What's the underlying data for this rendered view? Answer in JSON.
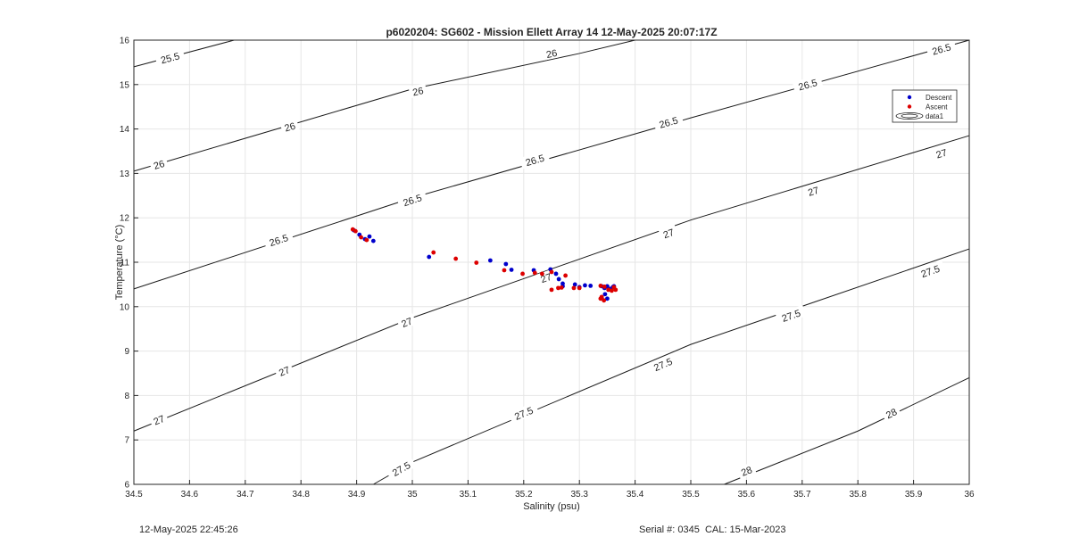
{
  "chart_data": {
    "type": "scatter",
    "title": "p6020204: SG602 - Mission Ellett Array 14 12-May-2025 20:07:17Z",
    "xlabel": "Salinity (psu)",
    "ylabel": "Temperature (°C)",
    "xlim": [
      34.5,
      36
    ],
    "ylim": [
      6,
      16
    ],
    "xticks": [
      "34.5",
      "34.6",
      "34.7",
      "34.8",
      "34.9",
      "35",
      "35.1",
      "35.2",
      "35.3",
      "35.4",
      "35.5",
      "35.6",
      "35.7",
      "35.8",
      "35.9",
      "36"
    ],
    "yticks": [
      "6",
      "7",
      "8",
      "9",
      "10",
      "11",
      "12",
      "13",
      "14",
      "15",
      "16"
    ],
    "grid": true,
    "legend_position": "top-right",
    "legend": [
      {
        "label": "Descent",
        "color": "#0000cc"
      },
      {
        "label": "Ascent",
        "color": "#dd0000"
      },
      {
        "label": "data1",
        "color": "#000000"
      }
    ],
    "contours": [
      {
        "label": "25.5",
        "points": [
          [
            34.5,
            15.4
          ],
          [
            34.68,
            16.0
          ]
        ],
        "labels_at": [
          [
            34.565,
            15.6
          ]
        ]
      },
      {
        "label": "26",
        "points": [
          [
            34.5,
            13.05
          ],
          [
            35.0,
            14.9
          ],
          [
            35.3,
            15.7
          ],
          [
            35.4,
            16.0
          ]
        ],
        "labels_at": [
          [
            34.545,
            13.2
          ],
          [
            34.78,
            14.05
          ],
          [
            35.01,
            14.85
          ],
          [
            35.25,
            15.7
          ]
        ]
      },
      {
        "label": "26.5",
        "points": [
          [
            34.5,
            10.4
          ],
          [
            35.0,
            12.45
          ],
          [
            35.5,
            14.25
          ],
          [
            36.0,
            16.0
          ]
        ],
        "labels_at": [
          [
            34.76,
            11.5
          ],
          [
            35.0,
            12.4
          ],
          [
            35.22,
            13.3
          ],
          [
            35.46,
            14.15
          ],
          [
            35.71,
            15.0
          ],
          [
            35.95,
            15.8
          ]
        ]
      },
      {
        "label": "27",
        "points": [
          [
            34.5,
            7.2
          ],
          [
            35.0,
            9.75
          ],
          [
            35.5,
            11.95
          ],
          [
            36.0,
            13.85
          ]
        ],
        "labels_at": [
          [
            34.545,
            7.45
          ],
          [
            34.77,
            8.55
          ],
          [
            34.99,
            9.65
          ],
          [
            35.24,
            10.65
          ],
          [
            35.46,
            11.65
          ],
          [
            35.72,
            12.6
          ],
          [
            35.95,
            13.45
          ]
        ]
      },
      {
        "label": "27.5",
        "points": [
          [
            34.93,
            6.0
          ],
          [
            35.0,
            6.5
          ],
          [
            35.5,
            9.15
          ],
          [
            36.0,
            11.3
          ]
        ],
        "labels_at": [
          [
            34.98,
            6.35
          ],
          [
            35.2,
            7.6
          ],
          [
            35.45,
            8.7
          ],
          [
            35.68,
            9.8
          ],
          [
            35.93,
            10.8
          ]
        ]
      },
      {
        "label": "28",
        "points": [
          [
            35.56,
            6.0
          ],
          [
            35.8,
            7.2
          ],
          [
            36.0,
            8.4
          ]
        ],
        "labels_at": [
          [
            35.6,
            6.3
          ],
          [
            35.86,
            7.6
          ]
        ]
      }
    ],
    "series": [
      {
        "name": "Descent",
        "color": "#0000cc",
        "points": [
          [
            34.895,
            11.72
          ],
          [
            34.905,
            11.62
          ],
          [
            34.915,
            11.52
          ],
          [
            34.923,
            11.58
          ],
          [
            34.93,
            11.48
          ],
          [
            35.03,
            11.12
          ],
          [
            35.14,
            11.04
          ],
          [
            35.168,
            10.96
          ],
          [
            35.178,
            10.83
          ],
          [
            35.218,
            10.82
          ],
          [
            35.248,
            10.84
          ],
          [
            35.258,
            10.74
          ],
          [
            35.263,
            10.62
          ],
          [
            35.27,
            10.52
          ],
          [
            35.27,
            10.46
          ],
          [
            35.292,
            10.5
          ],
          [
            35.3,
            10.44
          ],
          [
            35.31,
            10.48
          ],
          [
            35.32,
            10.47
          ],
          [
            35.34,
            10.46
          ],
          [
            35.345,
            10.42
          ],
          [
            35.35,
            10.46
          ],
          [
            35.355,
            10.4
          ],
          [
            35.36,
            10.44
          ],
          [
            35.362,
            10.46
          ],
          [
            35.34,
            10.2
          ],
          [
            35.346,
            10.28
          ],
          [
            35.35,
            10.18
          ]
        ]
      },
      {
        "name": "Ascent",
        "color": "#dd0000",
        "points": [
          [
            34.893,
            11.74
          ],
          [
            34.898,
            11.7
          ],
          [
            34.908,
            11.56
          ],
          [
            34.918,
            11.5
          ],
          [
            35.038,
            11.22
          ],
          [
            35.078,
            11.08
          ],
          [
            35.115,
            10.99
          ],
          [
            35.165,
            10.82
          ],
          [
            35.198,
            10.74
          ],
          [
            35.22,
            10.76
          ],
          [
            35.233,
            10.74
          ],
          [
            35.25,
            10.78
          ],
          [
            35.25,
            10.38
          ],
          [
            35.262,
            10.42
          ],
          [
            35.268,
            10.43
          ],
          [
            35.275,
            10.7
          ],
          [
            35.29,
            10.42
          ],
          [
            35.3,
            10.42
          ],
          [
            35.338,
            10.47
          ],
          [
            35.345,
            10.45
          ],
          [
            35.352,
            10.38
          ],
          [
            35.358,
            10.36
          ],
          [
            35.362,
            10.44
          ],
          [
            35.365,
            10.38
          ],
          [
            35.34,
            10.22
          ],
          [
            35.338,
            10.18
          ],
          [
            35.344,
            10.14
          ]
        ]
      }
    ]
  },
  "footer": {
    "left": "12-May-2025 22:45:26",
    "right": "Serial #: 0345  CAL: 15-Mar-2023"
  }
}
